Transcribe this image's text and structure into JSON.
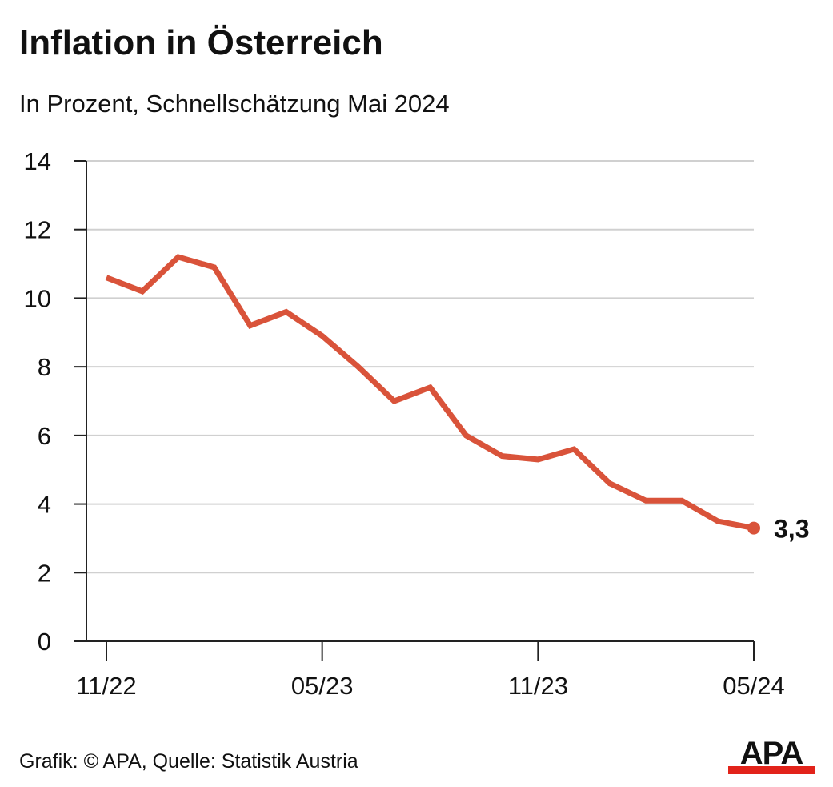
{
  "title": "Inflation in Österreich",
  "subtitle": "In Prozent, Schnellschätzung Mai 2024",
  "source": "Grafik: © APA, Quelle: Statistik Austria",
  "logo_text": "APA",
  "colors": {
    "line": "#d9533a",
    "grid": "#d0d0d0",
    "axis": "#222222",
    "text": "#111111",
    "logo_red": "#e2231a"
  },
  "chart_data": {
    "type": "line",
    "x": [
      "11/22",
      "12/22",
      "01/23",
      "02/23",
      "03/23",
      "04/23",
      "05/23",
      "06/23",
      "07/23",
      "08/23",
      "09/23",
      "10/23",
      "11/23",
      "12/23",
      "01/24",
      "02/24",
      "03/24",
      "04/24",
      "05/24"
    ],
    "series": [
      {
        "values": [
          10.6,
          10.2,
          11.2,
          10.9,
          9.2,
          9.6,
          8.9,
          8.0,
          7.0,
          7.4,
          6.0,
          5.4,
          5.3,
          5.6,
          4.6,
          4.1,
          4.1,
          3.5,
          3.3
        ]
      }
    ],
    "ylim": [
      0,
      14
    ],
    "yticks": [
      "0",
      "2",
      "4",
      "6",
      "8",
      "10",
      "12",
      "14"
    ],
    "xtick_labels": [
      "11/22",
      "05/23",
      "11/23",
      "05/24"
    ],
    "last_value_label": "3,3",
    "grid": true,
    "legend": "none"
  }
}
